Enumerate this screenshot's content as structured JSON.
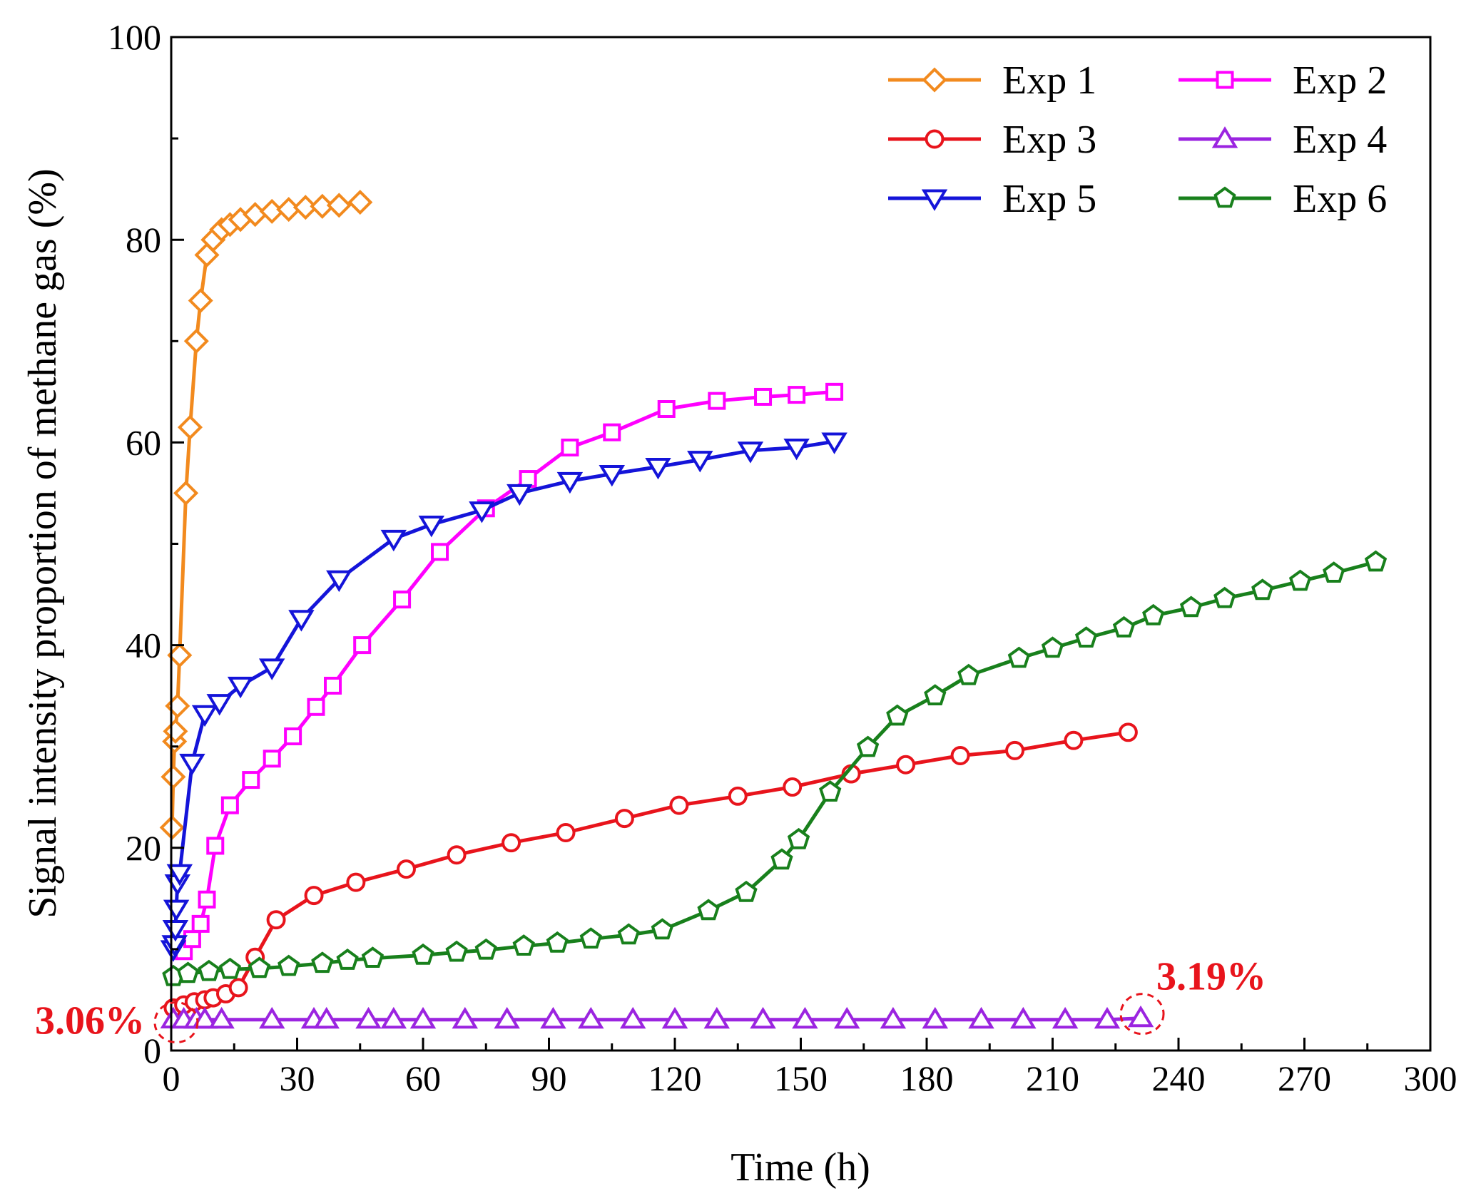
{
  "chart_data": {
    "type": "line",
    "title": "",
    "xlabel": "Time (h)",
    "ylabel": "Signal intensity proportion of methane gas (%)",
    "xlim": [
      0,
      300
    ],
    "ylim": [
      0,
      100
    ],
    "xticks": [
      0,
      30,
      60,
      90,
      120,
      150,
      180,
      210,
      240,
      270,
      300
    ],
    "yticks": [
      0,
      20,
      40,
      60,
      80,
      100
    ],
    "grid": false,
    "legend_position": "top-right",
    "series": [
      {
        "name": "Exp 1",
        "color": "#f28a1e",
        "marker": "diamond",
        "x": [
          0.2,
          0.5,
          0.8,
          1.0,
          1.5,
          2.0,
          3.5,
          4.5,
          6.0,
          7.0,
          8.5,
          10,
          12,
          14,
          16.5,
          20,
          24,
          28,
          32,
          36,
          40,
          45
        ],
        "y": [
          22,
          27,
          30.5,
          31.5,
          34,
          39,
          55,
          61.5,
          70,
          74,
          78.5,
          80,
          81,
          81.5,
          82,
          82.5,
          82.8,
          83,
          83.2,
          83.3,
          83.4,
          83.7
        ]
      },
      {
        "name": "Exp 2",
        "color": "#ff00ff",
        "marker": "square",
        "x": [
          3,
          5,
          7,
          8.5,
          10.5,
          14,
          19,
          24,
          29,
          34.5,
          38.5,
          45.5,
          55,
          64,
          75,
          85,
          95,
          105,
          118,
          130,
          141,
          149,
          158
        ],
        "y": [
          9.8,
          11,
          12.5,
          14.9,
          20.2,
          24.2,
          26.7,
          28.8,
          31,
          33.9,
          36,
          40,
          44.5,
          49.2,
          53.5,
          56.4,
          59.5,
          61,
          63.3,
          64.1,
          64.5,
          64.7,
          65
        ]
      },
      {
        "name": "Exp 3",
        "color": "#e8141c",
        "marker": "circle",
        "x": [
          0.5,
          3,
          5.5,
          8,
          10,
          13,
          16,
          20,
          25,
          34,
          44,
          56,
          68,
          81,
          94,
          108,
          121,
          135,
          148,
          162,
          175,
          188,
          201,
          215,
          228
        ],
        "y": [
          4.2,
          4.5,
          4.8,
          5.0,
          5.2,
          5.6,
          6.2,
          9.2,
          12.9,
          15.3,
          16.6,
          17.9,
          19.3,
          20.5,
          21.5,
          22.9,
          24.2,
          25.1,
          26,
          27.3,
          28.2,
          29.1,
          29.6,
          30.6,
          31.4
        ]
      },
      {
        "name": "Exp 4",
        "color": "#9b24e0",
        "marker": "triangle-up",
        "x": [
          0.5,
          3,
          6,
          8,
          12,
          24,
          34,
          37,
          47,
          53,
          60,
          70,
          80,
          91,
          100,
          110,
          120,
          130,
          141,
          151,
          161,
          172,
          182,
          193,
          203,
          213,
          223,
          231
        ],
        "y": [
          3.06,
          3.05,
          3.05,
          3.05,
          3.05,
          3.05,
          3.05,
          3.05,
          3.05,
          3.05,
          3.05,
          3.05,
          3.05,
          3.05,
          3.05,
          3.05,
          3.05,
          3.05,
          3.05,
          3.05,
          3.05,
          3.05,
          3.05,
          3.05,
          3.05,
          3.05,
          3.05,
          3.19
        ]
      },
      {
        "name": "Exp 5",
        "color": "#1414d9",
        "marker": "triangle-down",
        "x": [
          0.5,
          0.8,
          1.0,
          1.2,
          1.5,
          2.0,
          5.0,
          8.0,
          11.5,
          16.5,
          24,
          31,
          40,
          53,
          62,
          74,
          83,
          95,
          105,
          116,
          126,
          138,
          149,
          158
        ],
        "y": [
          10,
          10.5,
          12,
          14,
          16.5,
          17.5,
          28.4,
          33.2,
          34.3,
          36,
          37.8,
          42.6,
          46.5,
          50.5,
          51.9,
          53.3,
          55,
          56.2,
          56.9,
          57.6,
          58.3,
          59.2,
          59.5,
          60.1
        ]
      },
      {
        "name": "Exp 6",
        "color": "#18801c",
        "marker": "pentagon",
        "x": [
          0.5,
          4,
          9,
          14,
          21,
          28,
          36,
          42,
          48,
          60,
          68,
          75,
          84,
          92,
          100,
          109,
          117,
          128,
          137,
          145.5,
          149.5,
          157,
          166,
          173,
          182,
          190,
          202,
          210,
          218,
          227,
          234,
          243,
          251,
          260,
          269,
          277,
          287
        ],
        "y": [
          7.3,
          7.6,
          7.8,
          8.0,
          8.1,
          8.3,
          8.6,
          8.9,
          9.1,
          9.4,
          9.7,
          9.9,
          10.3,
          10.6,
          11.0,
          11.4,
          11.9,
          13.8,
          15.6,
          18.8,
          20.8,
          25.5,
          29.9,
          33,
          35,
          37,
          38.7,
          39.7,
          40.7,
          41.7,
          42.9,
          43.7,
          44.6,
          45.4,
          46.3,
          47.1,
          48.2
        ]
      }
    ],
    "annotations": [
      {
        "text": "3.06%",
        "color": "#e8141c",
        "at_x": 0.5,
        "at_y": 3.06
      },
      {
        "text": "3.19%",
        "color": "#e8141c",
        "at_x": 231,
        "at_y": 3.19
      }
    ]
  }
}
